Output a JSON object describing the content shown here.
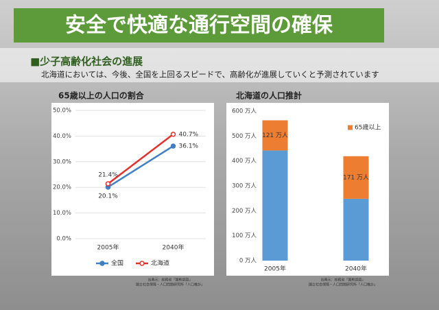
{
  "header": {
    "title": "安全で快適な通行空間の確保",
    "section": "■少子高齢化社会の進展",
    "description": "北海道においては、今後、全国を上回るスピードで、高齢化が進展していくと予測されています"
  },
  "chart_data": [
    {
      "type": "line",
      "title": "65歳以上の人口の割合",
      "categories": [
        "2005年",
        "2040年"
      ],
      "series": [
        {
          "name": "全国",
          "color": "#3f7fc4",
          "values": [
            20.1,
            36.1
          ],
          "value_labels": [
            "20.1%",
            "36.1%"
          ]
        },
        {
          "name": "北海道",
          "color": "#e3302a",
          "values": [
            21.4,
            40.7
          ],
          "value_labels": [
            "21.4%",
            "40.7%"
          ]
        }
      ],
      "ylim": [
        0,
        50
      ],
      "yticks": [
        {
          "value": 0,
          "label": "0.0%"
        },
        {
          "value": 10,
          "label": "10.0%"
        },
        {
          "value": 20,
          "label": "20.0%"
        },
        {
          "value": 30,
          "label": "30.0%"
        },
        {
          "value": 40,
          "label": "40.0%"
        },
        {
          "value": 50,
          "label": "50.0%"
        }
      ],
      "grid": true,
      "legend": "bottom",
      "source": [
        "出典元：総務省「国勢調査」",
        "国立社会保障・人口問題研究所「人口推計」"
      ]
    },
    {
      "type": "stacked-bar",
      "title": "北海道の人口推計",
      "categories": [
        "2005年",
        "2040年"
      ],
      "series": [
        {
          "color": "#5b9bd5",
          "values": [
            442,
            248
          ]
        },
        {
          "name": "65歳以上",
          "color": "#ed7d31",
          "values": [
            121,
            171
          ],
          "value_labels": [
            "121 万人",
            "171 万人"
          ]
        }
      ],
      "ylim": [
        0,
        600
      ],
      "yticks": [
        {
          "value": 0,
          "label": "0 万人"
        },
        {
          "value": 100,
          "label": "100 万人"
        },
        {
          "value": 200,
          "label": "200 万人"
        },
        {
          "value": 300,
          "label": "300 万人"
        },
        {
          "value": 400,
          "label": "400 万人"
        },
        {
          "value": 500,
          "label": "500 万人"
        },
        {
          "value": 600,
          "label": "600 万人"
        }
      ],
      "grid": false,
      "legend": "top-right",
      "source": [
        "出典元：総務省「国勢調査」",
        "国立社会保障・人口問題研究所「人口推計」"
      ]
    }
  ]
}
